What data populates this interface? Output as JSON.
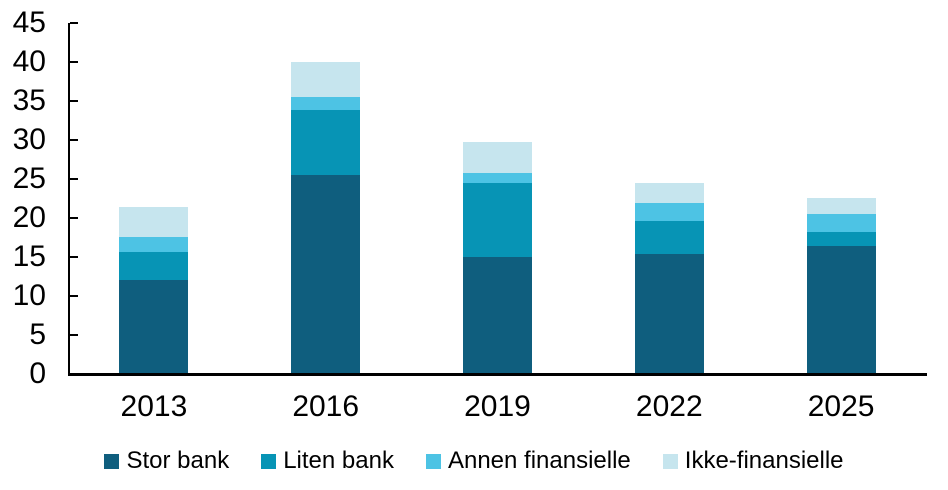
{
  "chart_data": {
    "type": "bar",
    "stacked": true,
    "title": "",
    "categories": [
      "2013",
      "2016",
      "2019",
      "2022",
      "2025"
    ],
    "series": [
      {
        "name": "Stor bank",
        "color": "#0F5E7E",
        "values": [
          12.0,
          25.5,
          14.9,
          15.3,
          16.3
        ]
      },
      {
        "name": "Liten bank",
        "color": "#0794B5",
        "values": [
          3.6,
          8.3,
          9.5,
          4.3,
          1.9
        ]
      },
      {
        "name": "Annen finansielle",
        "color": "#4DC3E4",
        "values": [
          1.9,
          1.7,
          1.3,
          2.2,
          2.2
        ]
      },
      {
        "name": "Ikke-finansielle",
        "color": "#C6E5EE",
        "values": [
          3.9,
          4.5,
          4.0,
          2.6,
          2.1
        ]
      }
    ],
    "stack_totals": [
      21.4,
      40.0,
      29.7,
      24.4,
      22.5
    ],
    "ylim": [
      0,
      45
    ],
    "yticks": [
      0,
      5,
      10,
      15,
      20,
      25,
      30,
      35,
      40,
      45
    ],
    "xlabel": "",
    "ylabel": "",
    "grid": false,
    "tick_style": "inside",
    "legend_position": "bottom",
    "axis_color": "#000000",
    "background_color": "#FFFFFF"
  }
}
